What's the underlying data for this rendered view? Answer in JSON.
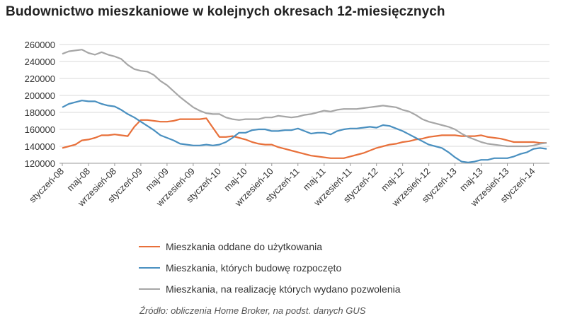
{
  "chart_data": {
    "type": "line",
    "title": "Budownictwo mieszkaniowe w kolejnych okresach 12-miesięcznych",
    "source": "Źródło: obliczenia Home Broker, na podst. danych GUS",
    "ylim": [
      120000,
      260000
    ],
    "yticks": [
      "260000",
      "240000",
      "220000",
      "200000",
      "180000",
      "160000",
      "140000",
      "120000"
    ],
    "ytick_values": [
      260000,
      240000,
      220000,
      200000,
      180000,
      160000,
      140000,
      120000
    ],
    "xtick_labels": [
      "styczeń-08",
      "maj-08",
      "wrzesień-08",
      "styczeń-09",
      "maj-09",
      "wrzesień-09",
      "styczeń-10",
      "maj-10",
      "wrzesień-10",
      "styczeń-11",
      "maj-11",
      "wrzesień-11",
      "styczeń-12",
      "maj-12",
      "wrzesień-12",
      "styczeń-13",
      "maj-13",
      "wrzesień-13",
      "styczeń-14"
    ],
    "x_start": "styczeń-08",
    "x_end": "sierpień-14",
    "grid": true,
    "legend_position": "bottom",
    "series": [
      {
        "name": "Mieszkania oddane do użytkowania",
        "color": "#E8703A",
        "values": [
          138000,
          140000,
          142000,
          147000,
          148000,
          150000,
          153000,
          153000,
          154000,
          153000,
          152000,
          163000,
          171000,
          171000,
          170000,
          169000,
          169000,
          170000,
          172000,
          172000,
          172000,
          172000,
          173000,
          162000,
          151000,
          151000,
          152000,
          150000,
          148000,
          145000,
          143000,
          142000,
          142000,
          139000,
          137000,
          135000,
          133000,
          131000,
          129000,
          128000,
          127000,
          126000,
          126000,
          126000,
          128000,
          130000,
          132000,
          135000,
          138000,
          140000,
          142000,
          143000,
          145000,
          146000,
          148000,
          149000,
          151000,
          152000,
          153000,
          153000,
          153000,
          152000,
          152000,
          152000,
          153000,
          151000,
          150000,
          149000,
          147000,
          145000,
          145000,
          145000,
          145000,
          144000,
          144000
        ]
      },
      {
        "name": "Mieszkania, których budowę rozpoczęto",
        "color": "#4A90C0",
        "values": [
          186000,
          190000,
          192000,
          194000,
          193000,
          193000,
          190000,
          188000,
          187000,
          183000,
          178000,
          174000,
          169000,
          164000,
          159000,
          153000,
          150000,
          147000,
          143000,
          142000,
          141000,
          141000,
          142000,
          141000,
          142000,
          145000,
          150000,
          156000,
          156000,
          159000,
          160000,
          160000,
          158000,
          158000,
          159000,
          159000,
          161000,
          158000,
          155000,
          156000,
          156000,
          154000,
          158000,
          160000,
          161000,
          161000,
          162000,
          163000,
          162000,
          165000,
          164000,
          161000,
          158000,
          154000,
          150000,
          146000,
          142000,
          140000,
          138000,
          133000,
          127000,
          122000,
          121000,
          122000,
          124000,
          124000,
          126000,
          126000,
          126000,
          128000,
          131000,
          133000,
          137000,
          138000,
          137000
        ]
      },
      {
        "name": "Mieszkania, na realizację których wydano pozwolenia",
        "color": "#A6A6A6",
        "values": [
          249000,
          252000,
          253000,
          254000,
          250000,
          248000,
          251000,
          248000,
          246000,
          243000,
          236000,
          231000,
          229000,
          228000,
          224000,
          217000,
          212000,
          205000,
          198000,
          192000,
          186000,
          182000,
          179000,
          178000,
          178000,
          174000,
          172000,
          171000,
          172000,
          172000,
          172000,
          174000,
          174000,
          176000,
          175000,
          174000,
          175000,
          177000,
          178000,
          180000,
          182000,
          181000,
          183000,
          184000,
          184000,
          184000,
          185000,
          186000,
          187000,
          188000,
          187000,
          186000,
          183000,
          181000,
          177000,
          172000,
          169000,
          167000,
          165000,
          163000,
          160000,
          155000,
          151000,
          148000,
          145000,
          143000,
          142000,
          141000,
          140000,
          140000,
          140000,
          140000,
          141000,
          143000,
          144000
        ]
      }
    ]
  }
}
